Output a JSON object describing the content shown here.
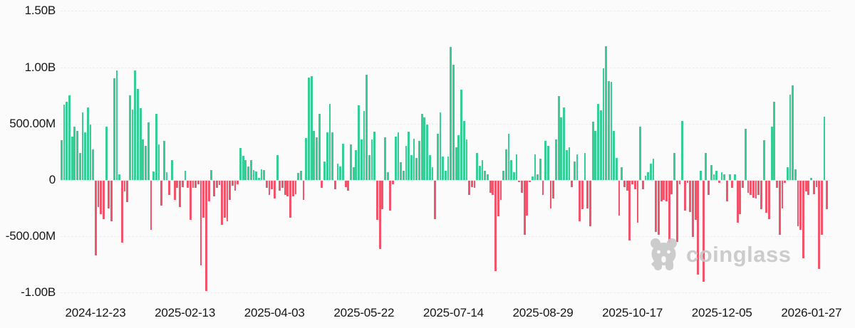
{
  "chart_data": {
    "type": "bar",
    "title": "",
    "series_name": "daily-net-flow",
    "unit": "USD",
    "positive_color": "#36ce95",
    "negative_color": "#f0556b",
    "background_color": "#fbfbfb",
    "grid_color": "#ececec",
    "text_color": "#161616",
    "grid": "on",
    "legend": "none",
    "ylim_millions": [
      -1000,
      1500
    ],
    "y_ticks": [
      {
        "label": "1.50B",
        "value_millions": 1500
      },
      {
        "label": "1.00B",
        "value_millions": 1000
      },
      {
        "label": "500.00M",
        "value_millions": 500
      },
      {
        "label": "0",
        "value_millions": 0
      },
      {
        "label": "-500.00M",
        "value_millions": -500
      },
      {
        "label": "-1.00B",
        "value_millions": -1000
      }
    ],
    "x_tick_labels": [
      "2024-12-23",
      "2025-02-13",
      "2025-04-03",
      "2025-05-22",
      "2025-07-14",
      "2025-08-29",
      "2025-10-17",
      "2025-12-05",
      "2026-01-27"
    ],
    "values_millions": [
      356,
      672,
      694,
      751,
      388,
      472,
      434,
      240,
      599,
      420,
      641,
      494,
      272,
      -666,
      -234,
      -297,
      -340,
      474,
      -244,
      -359,
      901,
      975,
      50,
      -550,
      -97,
      -190,
      750,
      628,
      970,
      807,
      638,
      360,
      300,
      512,
      -435,
      75,
      589,
      314,
      -224,
      350,
      72,
      -129,
      177,
      -171,
      -65,
      -234,
      -55,
      82,
      -65,
      -350,
      -65,
      -65,
      -30,
      -750,
      -330,
      -980,
      -180,
      88,
      -139,
      -65,
      -40,
      -392,
      -330,
      -361,
      -171,
      -45,
      -86,
      -30,
      287,
      215,
      177,
      120,
      177,
      88,
      76,
      19,
      97,
      88,
      -65,
      -129,
      -76,
      -160,
      219,
      -86,
      -65,
      -129,
      -139,
      -329,
      -139,
      -118,
      65,
      82,
      -171,
      371,
      909,
      920,
      434,
      378,
      589,
      -65,
      167,
      424,
      677,
      424,
      -76,
      146,
      118,
      325,
      -55,
      -86,
      314,
      114,
      262,
      662,
      357,
      610,
      937,
      224,
      357,
      430,
      -350,
      -603,
      -255,
      378,
      72,
      -266,
      -34,
      388,
      420,
      156,
      82,
      304,
      430,
      219,
      367,
      198,
      346,
      589,
      557,
      494,
      219,
      114,
      -340,
      409,
      599,
      209,
      82,
      209,
      1179,
      1020,
      293,
      398,
      799,
      521,
      357,
      -129,
      -55,
      -65,
      240,
      124,
      177,
      82,
      51,
      -108,
      -129,
      -803,
      -318,
      -171,
      82,
      272,
      409,
      177,
      72,
      230,
      -13,
      -108,
      -477,
      -308,
      -13,
      29,
      230,
      51,
      188,
      -129,
      346,
      304,
      -245,
      -160,
      357,
      747,
      557,
      646,
      266,
      293,
      -55,
      167,
      230,
      -361,
      -255,
      240,
      -245,
      -403,
      519,
      434,
      673,
      620,
      989,
      1186,
      880,
      873,
      434,
      198,
      -308,
      114,
      -55,
      -86,
      -530,
      -34,
      -76,
      -371,
      472,
      -76,
      40,
      72,
      146,
      188,
      -456,
      -477,
      -181,
      -171,
      -181,
      -550,
      -118,
      240,
      -540,
      -34,
      525,
      -266,
      -20,
      -277,
      -498,
      -350,
      -835,
      82,
      -898,
      240,
      -129,
      135,
      51,
      82,
      -20,
      72,
      51,
      -181,
      51,
      -65,
      51,
      -371,
      -297,
      -65,
      457,
      -108,
      -129,
      -150,
      -160,
      -129,
      -255,
      352,
      -287,
      -340,
      472,
      694,
      -65,
      -477,
      -245,
      -20,
      114,
      757,
      842,
      97,
      -403,
      -435,
      -688,
      -97,
      -129,
      20,
      -118,
      -55,
      -782,
      -477,
      561,
      -255
    ]
  },
  "watermark": {
    "text": "coinglass",
    "logo": "coinglass-bear-logo",
    "color": "#c9c9c9"
  }
}
